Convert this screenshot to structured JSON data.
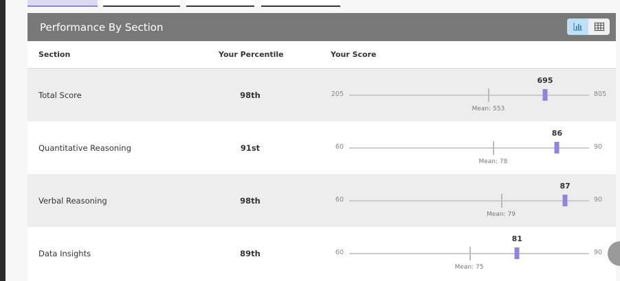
{
  "header": {
    "title": "Performance By Section",
    "toggle": [
      {
        "icon": "bar-chart-icon",
        "active": true
      },
      {
        "icon": "table-icon",
        "active": false
      }
    ]
  },
  "columns": {
    "section": "Section",
    "percentile": "Your Percentile",
    "score": "Your Score"
  },
  "rows": [
    {
      "section": "Total Score",
      "percentile": "98th",
      "min": 205,
      "max": 805,
      "score": 695,
      "mean": 553,
      "min_label": "205",
      "max_label": "805",
      "score_label": "695",
      "mean_label": "Mean: 553"
    },
    {
      "section": "Quantitative Reasoning",
      "percentile": "91st",
      "min": 60,
      "max": 90,
      "score": 86,
      "mean": 78,
      "min_label": "60",
      "max_label": "90",
      "score_label": "86",
      "mean_label": "Mean: 78"
    },
    {
      "section": "Verbal Reasoning",
      "percentile": "98th",
      "min": 60,
      "max": 90,
      "score": 87,
      "mean": 79,
      "min_label": "60",
      "max_label": "90",
      "score_label": "87",
      "mean_label": "Mean: 79"
    },
    {
      "section": "Data Insights",
      "percentile": "89th",
      "min": 60,
      "max": 90,
      "score": 81,
      "mean": 75,
      "min_label": "60",
      "max_label": "90",
      "score_label": "81",
      "mean_label": "Mean: 75"
    }
  ],
  "colors": {
    "header": "#787878",
    "marker": "#8f86db",
    "active_tab": "#dcd9f3"
  }
}
